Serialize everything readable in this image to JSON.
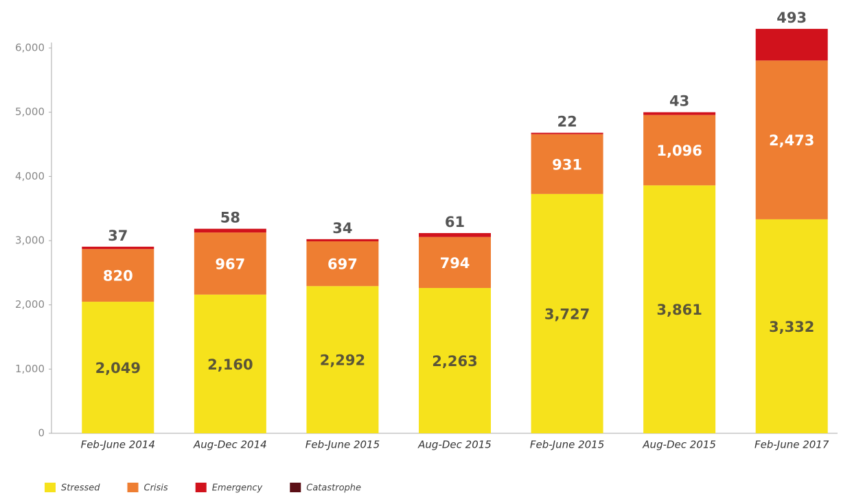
{
  "chart_data": {
    "type": "stacked_bar",
    "categories": [
      "Feb-June 2014",
      "Aug-Dec 2014",
      "Feb-June 2015",
      "Aug-Dec 2015",
      "Feb-June 2015",
      "Aug-Dec 2015",
      "Feb-June 2017"
    ],
    "series": [
      {
        "name": "Stressed",
        "color": "#f6e21c",
        "values": [
          2049,
          2160,
          2292,
          2263,
          3727,
          3861,
          3332
        ],
        "value_labels": [
          "2,049",
          "2,160",
          "2,292",
          "2,263",
          "3,727",
          "3,861",
          "3,332"
        ]
      },
      {
        "name": "Crisis",
        "color": "#ee7e32",
        "values": [
          820,
          967,
          697,
          794,
          931,
          1096,
          2473
        ],
        "value_labels": [
          "820",
          "967",
          "697",
          "794",
          "931",
          "1,096",
          "2,473"
        ]
      },
      {
        "name": "Emergency",
        "color": "#d1121c",
        "values": [
          37,
          58,
          34,
          61,
          22,
          43,
          493
        ]
      },
      {
        "name": "Catastrophe",
        "color": "#5b0f16",
        "values": [
          0,
          0,
          0,
          0,
          0,
          0,
          0
        ]
      }
    ],
    "ylim": [
      0,
      6000
    ],
    "yticks": [
      0,
      {
        "value": 1000,
        "label": "1,000"
      },
      {
        "value": 2000,
        "label": "2,000"
      },
      {
        "value": 3000,
        "label": "3,000"
      },
      {
        "value": 4000,
        "label": "4,000"
      },
      {
        "value": 5000,
        "label": "5,000"
      },
      {
        "value": 6000,
        "label": "6,000"
      }
    ]
  }
}
